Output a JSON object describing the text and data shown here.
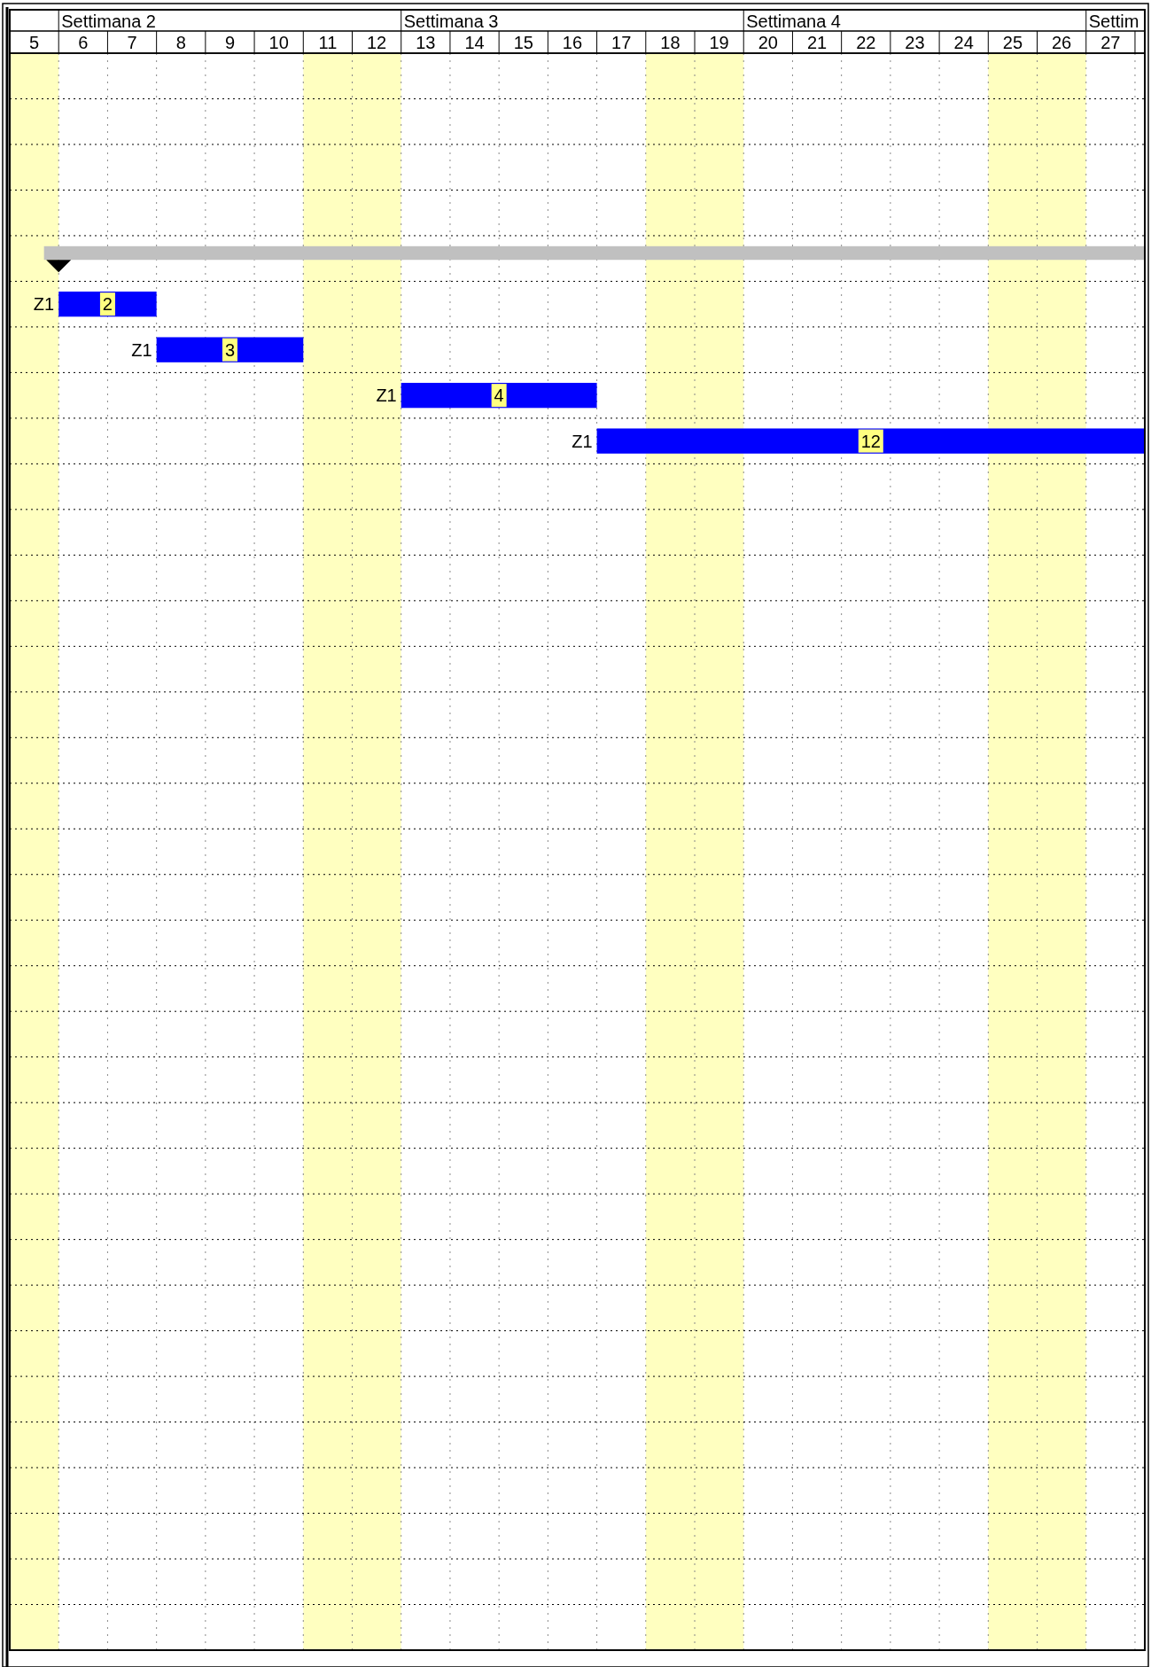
{
  "chart_data": {
    "type": "bar",
    "orientation": "horizontal",
    "grid": true,
    "categories": [
      null,
      null,
      null,
      null,
      null,
      null,
      null,
      null,
      null,
      null,
      null,
      null,
      null,
      null,
      null,
      null,
      null,
      null,
      null,
      null,
      null,
      null,
      null,
      null,
      null,
      null,
      null,
      null,
      null,
      null,
      null,
      null,
      null,
      null,
      null
    ],
    "values": [
      null,
      null,
      null,
      null,
      22.5,
      2,
      3,
      4,
      12,
      null,
      null,
      null,
      null,
      null,
      null,
      null,
      null,
      null,
      null,
      null,
      null,
      null,
      null,
      null,
      null,
      null,
      null,
      null,
      null,
      null,
      null,
      null,
      null,
      null,
      null
    ],
    "base": [
      null,
      null,
      null,
      null,
      5.7,
      6,
      8,
      13,
      17,
      null,
      null,
      null,
      null,
      null,
      null,
      null,
      null,
      null,
      null,
      null,
      null,
      null,
      null,
      null,
      null,
      null,
      null,
      null,
      null,
      null,
      null,
      null,
      null,
      null,
      null
    ],
    "colors": [
      null,
      null,
      null,
      null,
      "#c0c0c0",
      "#0000ff",
      "#0000ff",
      "#0000ff",
      "#0000ff",
      null,
      null,
      null,
      null,
      null,
      null,
      null,
      null,
      null,
      null,
      null,
      null,
      null,
      null,
      null,
      null,
      null,
      null,
      null,
      null,
      null,
      null,
      null,
      null,
      null,
      null
    ],
    "value_labels": [
      null,
      null,
      null,
      null,
      null,
      "2",
      "3",
      "4",
      "12",
      null,
      null,
      null,
      null,
      null,
      null,
      null,
      null,
      null,
      null,
      null,
      null,
      null,
      null,
      null,
      null,
      null,
      null,
      null,
      null,
      null,
      null,
      null,
      null,
      null,
      null
    ],
    "xlim": [
      5,
      28.2
    ],
    "xticks": [
      {
        "value": 5.5,
        "label": "5"
      },
      {
        "value": 6.5,
        "label": "6"
      },
      {
        "value": 7.5,
        "label": "7"
      },
      {
        "value": 8.5,
        "label": "8"
      },
      {
        "value": 9.5,
        "label": "9"
      },
      {
        "value": 10.5,
        "label": "10"
      },
      {
        "value": 11.5,
        "label": "11"
      },
      {
        "value": 12.5,
        "label": "12"
      },
      {
        "value": 13.5,
        "label": "13"
      },
      {
        "value": 14.5,
        "label": "14"
      },
      {
        "value": 15.5,
        "label": "15"
      },
      {
        "value": 16.5,
        "label": "16"
      },
      {
        "value": 17.5,
        "label": "17"
      },
      {
        "value": 18.5,
        "label": "18"
      },
      {
        "value": 19.5,
        "label": "19"
      },
      {
        "value": 20.5,
        "label": "20"
      },
      {
        "value": 21.5,
        "label": "21"
      },
      {
        "value": 22.5,
        "label": "22"
      },
      {
        "value": 23.5,
        "label": "23"
      },
      {
        "value": 24.5,
        "label": "24"
      },
      {
        "value": 25.5,
        "label": "25"
      },
      {
        "value": 26.5,
        "label": "26"
      },
      {
        "value": 27.5,
        "label": "27"
      }
    ],
    "bands": [
      {
        "axis": "x",
        "from": 5,
        "to": 6,
        "color": "#ffffc0"
      },
      {
        "axis": "x",
        "from": 11,
        "to": 13,
        "color": "#ffffc0"
      },
      {
        "axis": "x",
        "from": 18,
        "to": 20,
        "color": "#ffffc0"
      },
      {
        "axis": "x",
        "from": 25,
        "to": 27,
        "color": "#ffffc0"
      }
    ],
    "annotations": [
      "Settimana 2",
      "Settimana 3",
      "Settimana 4",
      "Settim",
      {
        "text": "Z1",
        "x": 6
      },
      {
        "text": "Z1",
        "x": 8
      },
      {
        "text": "Z1",
        "x": 13
      },
      {
        "text": "Z1",
        "x": 17
      }
    ]
  }
}
